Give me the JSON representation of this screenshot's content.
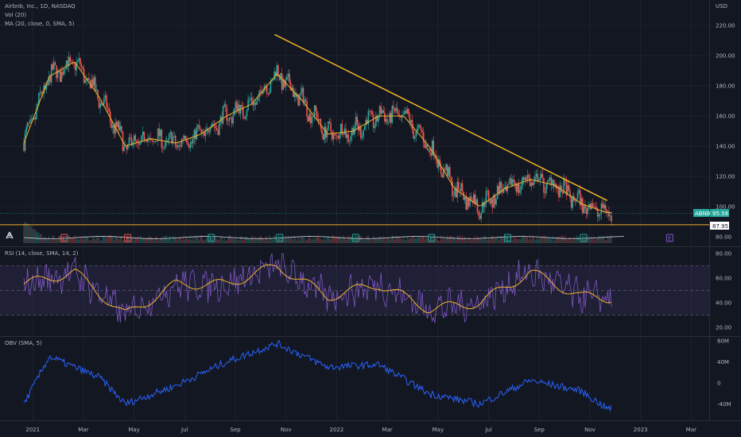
{
  "header": {
    "symbol_line": "Airbnb, Inc., 1D, NASDAQ",
    "vol_label": "Vol (20)",
    "ma_label": "MA (20, close, 0, SMA, 5)",
    "rsi_label": "RSI (14, close, SMA, 14, 2)",
    "obv_label": "OBV (SMA, 5)",
    "currency": "USD"
  },
  "price_axis": {
    "ticks": [
      "220.00",
      "200.00",
      "180.00",
      "160.00",
      "140.00",
      "120.00",
      "100.00",
      "80.00"
    ],
    "min": 80,
    "max": 220
  },
  "rsi_axis": {
    "ticks": [
      "80.00",
      "60.00",
      "40.00",
      "20.00"
    ],
    "upper_band": 70,
    "lower_band": 30,
    "mid": 50
  },
  "obv_axis": {
    "ticks": [
      "80M",
      "40M",
      "0",
      "-40M"
    ]
  },
  "time_axis": {
    "ticks": [
      "2021",
      "Mar",
      "May",
      "Jul",
      "Sep",
      "Nov",
      "2022",
      "Mar",
      "May",
      "Jul",
      "Sep",
      "Nov",
      "2023",
      "Mar"
    ]
  },
  "price_tags": {
    "last": "95.58",
    "symbol": "ABNB",
    "support": "87.95"
  },
  "earnings_markers": [
    "E",
    "E",
    "E",
    "E",
    "E",
    "E",
    "E",
    "E",
    "E"
  ],
  "colors": {
    "up": "#26a69a",
    "down": "#ef5350",
    "ma": "#f0b429",
    "trendline": "#f0b429",
    "rsi": "#7e57c2",
    "rsi_ma": "#f0b429",
    "obv": "#2962ff",
    "background": "#131722"
  },
  "chart_data": [
    {
      "type": "line",
      "title": "Airbnb, Inc., 1D, NASDAQ",
      "ylabel": "USD",
      "ylim": [
        80,
        220
      ],
      "series": [
        {
          "name": "MA (20, close, 0, SMA, 5)",
          "x": [
            "2021-01",
            "2021-02",
            "2021-03",
            "2021-04",
            "2021-05",
            "2021-06",
            "2021-07",
            "2021-08",
            "2021-09",
            "2021-10",
            "2021-11",
            "2021-12",
            "2022-01",
            "2022-02",
            "2022-03",
            "2022-04",
            "2022-05",
            "2022-06",
            "2022-07",
            "2022-08",
            "2022-09",
            "2022-10",
            "2022-11",
            "2022-12"
          ],
          "values": [
            142,
            186,
            196,
            172,
            140,
            145,
            142,
            148,
            160,
            168,
            188,
            170,
            148,
            150,
            160,
            160,
            140,
            112,
            100,
            112,
            118,
            114,
            102,
            96
          ]
        }
      ],
      "trendline": {
        "from": [
          "2021-11-16",
          214
        ],
        "to": [
          "2022-12-20",
          104
        ]
      },
      "support_level": 87.95,
      "last_price": 95.58
    },
    {
      "type": "line",
      "title": "RSI (14, close, SMA, 14, 2)",
      "ylim": [
        20,
        80
      ],
      "bands": [
        30,
        50,
        70
      ],
      "series": [
        {
          "name": "RSI",
          "x": [
            "2021-01",
            "2021-03",
            "2021-05",
            "2021-07",
            "2021-09",
            "2021-11",
            "2022-01",
            "2022-03",
            "2022-05",
            "2022-07",
            "2022-09",
            "2022-11",
            "2022-12"
          ],
          "values": [
            55,
            65,
            30,
            55,
            55,
            70,
            45,
            55,
            35,
            40,
            65,
            45,
            44
          ]
        }
      ]
    },
    {
      "type": "line",
      "title": "OBV (SMA, 5)",
      "series": [
        {
          "name": "OBV",
          "x": [
            "2021-01",
            "2021-02",
            "2021-04",
            "2021-05",
            "2021-07",
            "2021-09",
            "2021-11",
            "2022-01",
            "2022-03",
            "2022-05",
            "2022-07",
            "2022-09",
            "2022-11",
            "2022-12"
          ],
          "values": [
            -40,
            50,
            10,
            -40,
            -5,
            40,
            75,
            30,
            35,
            -20,
            -40,
            5,
            -15,
            -48
          ]
        }
      ]
    }
  ]
}
